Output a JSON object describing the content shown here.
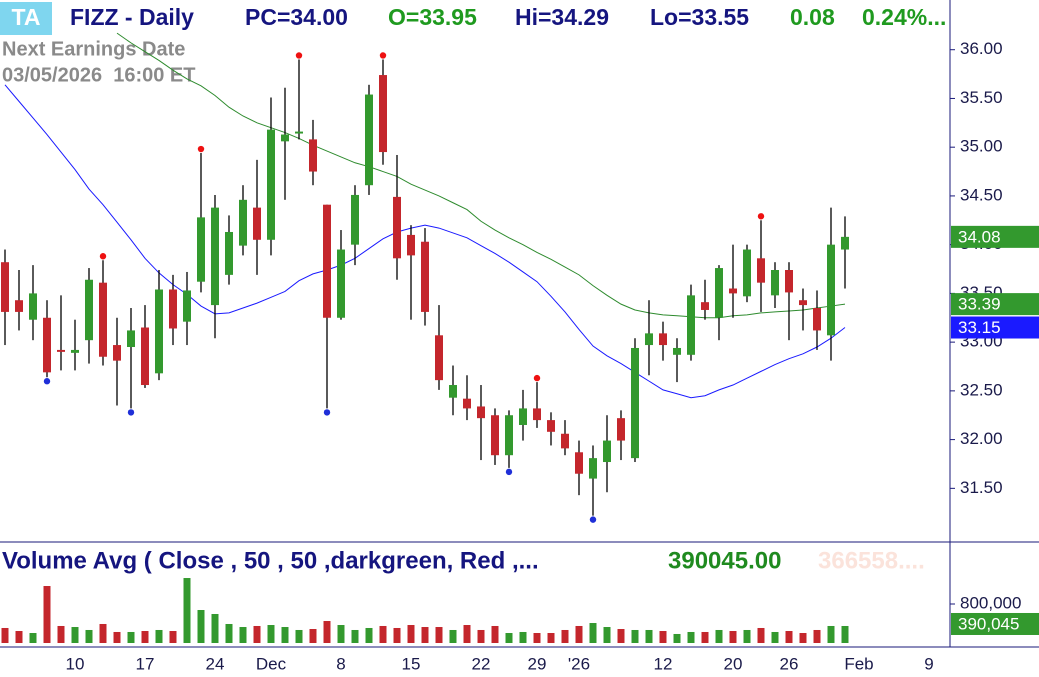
{
  "header": {
    "badge": "TA",
    "symbol": "FIZZ - Daily",
    "prev_close": "PC=34.00",
    "open": "O=33.95",
    "high": "Hi=34.29",
    "low": "Lo=33.55",
    "change": "0.08",
    "change_pct": "0.24%...",
    "earnings_title": "Next Earnings Date",
    "earnings_date": "03/05/2026  16:00 ET"
  },
  "chart_data": {
    "type": "candlestick",
    "categories": [
      null,
      null,
      null,
      null,
      null,
      "10",
      null,
      null,
      null,
      null,
      "17",
      null,
      null,
      null,
      null,
      "24",
      null,
      null,
      null,
      "Dec",
      null,
      null,
      null,
      null,
      "8",
      null,
      null,
      null,
      null,
      "15",
      null,
      null,
      null,
      null,
      "22",
      null,
      null,
      null,
      "29",
      null,
      null,
      "'26",
      null,
      null,
      null,
      null,
      null,
      "12",
      null,
      null,
      null,
      null,
      "20",
      null,
      null,
      null,
      "26",
      null,
      null,
      null,
      null,
      "Feb",
      null,
      null,
      null,
      null,
      "9"
    ],
    "open": [
      33.82,
      33.43,
      33.23,
      33.25,
      32.92,
      32.89,
      33.02,
      33.61,
      32.97,
      32.95,
      33.15,
      32.68,
      33.54,
      33.21,
      33.62,
      33.38,
      33.69,
      33.99,
      34.38,
      34.05,
      35.06,
      35.14,
      35.08,
      34.41,
      33.25,
      34.0,
      34.61,
      35.74,
      34.49,
      34.1,
      34.03,
      33.07,
      32.43,
      32.42,
      32.34,
      32.25,
      31.84,
      32.15,
      32.32,
      32.2,
      32.06,
      31.87,
      31.6,
      31.77,
      32.22,
      31.81,
      32.97,
      33.09,
      32.87,
      32.87,
      33.41,
      33.25,
      33.55,
      33.47,
      33.86,
      33.48,
      33.74,
      33.43,
      33.35,
      33.07,
      33.95,
      null,
      null,
      null,
      null,
      null,
      null
    ],
    "high": [
      33.95,
      33.74,
      33.79,
      33.43,
      33.48,
      33.23,
      33.76,
      33.84,
      33.25,
      33.35,
      33.38,
      33.74,
      33.69,
      33.72,
      34.94,
      34.51,
      34.3,
      34.61,
      34.87,
      35.51,
      35.61,
      35.9,
      35.28,
      34.41,
      34.15,
      34.61,
      35.64,
      35.9,
      34.92,
      34.2,
      34.17,
      33.38,
      32.76,
      32.66,
      32.56,
      32.32,
      32.3,
      32.51,
      32.59,
      32.28,
      32.2,
      31.99,
      31.94,
      32.25,
      32.3,
      33.04,
      33.43,
      33.21,
      33.04,
      33.59,
      33.64,
      33.79,
      34.0,
      34.0,
      34.25,
      33.82,
      33.82,
      33.55,
      33.53,
      34.38,
      34.29,
      null,
      null,
      null,
      null,
      null,
      null
    ],
    "low": [
      32.97,
      33.12,
      33.02,
      32.64,
      32.71,
      32.71,
      32.78,
      32.76,
      32.35,
      32.32,
      32.53,
      32.61,
      32.97,
      32.97,
      33.51,
      33.04,
      33.59,
      33.89,
      33.69,
      33.89,
      34.46,
      35.08,
      34.61,
      32.32,
      33.23,
      33.79,
      34.51,
      34.82,
      33.64,
      33.23,
      33.17,
      32.51,
      32.25,
      32.2,
      31.79,
      31.74,
      31.71,
      31.99,
      32.12,
      31.94,
      31.84,
      31.43,
      31.22,
      31.46,
      31.79,
      31.77,
      32.66,
      32.81,
      32.59,
      32.81,
      33.23,
      33.02,
      33.25,
      33.41,
      33.31,
      33.35,
      33.02,
      33.12,
      32.92,
      32.81,
      33.55,
      null,
      null,
      null,
      null,
      null,
      null
    ],
    "close": [
      33.31,
      33.31,
      33.5,
      32.69,
      32.9,
      32.92,
      33.64,
      32.85,
      32.81,
      33.12,
      32.56,
      33.54,
      33.14,
      33.53,
      34.28,
      34.38,
      34.13,
      34.46,
      34.05,
      35.18,
      35.13,
      35.16,
      34.75,
      33.25,
      33.95,
      34.51,
      35.54,
      34.95,
      33.86,
      33.89,
      33.31,
      32.61,
      32.56,
      32.32,
      32.22,
      31.84,
      32.25,
      32.32,
      32.2,
      32.08,
      31.91,
      31.65,
      31.81,
      31.99,
      31.99,
      32.94,
      33.09,
      32.97,
      32.94,
      33.48,
      33.33,
      33.76,
      33.5,
      33.95,
      33.61,
      33.74,
      33.51,
      33.38,
      33.12,
      34.0,
      34.08,
      null,
      null,
      null,
      null,
      null,
      null
    ],
    "last_label": "34.08",
    "up_color": "#33992e",
    "down_color": "#c4262c",
    "swing_highs": [
      7,
      14,
      21,
      27,
      38,
      54
    ],
    "swing_high_color": "#ee1111",
    "swing_lows": [
      3,
      9,
      23,
      36,
      42
    ],
    "swing_low_color": "#1f2fd8",
    "overlays": [
      {
        "color": "#1a1aff",
        "tag_color": "#1a1aff",
        "last_label": "33.15",
        "values": [
          35.64,
          35.47,
          35.3,
          35.13,
          34.95,
          34.77,
          34.57,
          34.41,
          34.23,
          34.05,
          33.86,
          33.71,
          33.59,
          33.49,
          33.37,
          33.29,
          33.3,
          33.35,
          33.4,
          33.46,
          33.52,
          33.63,
          33.7,
          33.74,
          33.79,
          33.86,
          33.96,
          34.06,
          34.13,
          34.17,
          34.2,
          34.17,
          34.12,
          34.07,
          33.99,
          33.91,
          33.82,
          33.72,
          33.62,
          33.47,
          33.31,
          33.13,
          32.96,
          32.86,
          32.78,
          32.69,
          32.6,
          32.51,
          32.47,
          32.43,
          32.45,
          32.51,
          32.56,
          32.63,
          32.7,
          32.77,
          32.83,
          32.88,
          32.95,
          33.04,
          33.15,
          null,
          null,
          null,
          null,
          null,
          null
        ]
      },
      {
        "color": "#2e8b2e",
        "tag_color": "#33992e",
        "last_label": "33.39",
        "values": [
          null,
          null,
          null,
          null,
          null,
          null,
          null,
          null,
          36.17,
          36.07,
          35.98,
          35.89,
          35.79,
          35.7,
          35.63,
          35.53,
          35.41,
          35.32,
          35.25,
          35.2,
          35.15,
          35.09,
          35.02,
          34.96,
          34.9,
          34.84,
          34.8,
          34.75,
          34.7,
          34.62,
          34.56,
          34.5,
          34.43,
          34.36,
          34.24,
          34.15,
          34.07,
          34.0,
          33.92,
          33.85,
          33.77,
          33.69,
          33.58,
          33.48,
          33.39,
          33.33,
          33.3,
          33.28,
          33.27,
          33.26,
          33.25,
          33.25,
          33.27,
          33.28,
          33.3,
          33.31,
          33.32,
          33.33,
          33.35,
          33.37,
          33.39,
          null,
          null,
          null,
          null,
          null,
          null
        ]
      }
    ],
    "ylim": [
      30.97,
      36.51
    ],
    "yticks": [
      {
        "value": 31.5,
        "label": "31.50"
      },
      {
        "value": 32,
        "label": "32.00"
      },
      {
        "value": 32.5,
        "label": "32.50"
      },
      {
        "value": 33,
        "label": "33.00"
      },
      {
        "value": 33.5,
        "label": "33.50"
      },
      {
        "value": 34,
        "label": "34.00"
      },
      {
        "value": 34.5,
        "label": "34.50"
      },
      {
        "value": 35,
        "label": "35.00"
      },
      {
        "value": 35.5,
        "label": "35.50"
      },
      {
        "value": 36,
        "label": "36.00"
      }
    ],
    "volume": {
      "title": "Volume Avg ( Close , 50 , 50 ,darkgreen, Red ,...",
      "value_text": "390045.00",
      "faded_text": "366558....",
      "values": [
        308000,
        246000,
        205000,
        1169000,
        349000,
        328000,
        267000,
        390000,
        226000,
        226000,
        246000,
        267000,
        246000,
        1333000,
        677000,
        595000,
        390000,
        328000,
        349000,
        369000,
        328000,
        267000,
        287000,
        451000,
        369000,
        267000,
        308000,
        349000,
        308000,
        369000,
        328000,
        328000,
        267000,
        369000,
        267000,
        349000,
        205000,
        226000,
        205000,
        205000,
        267000,
        349000,
        410000,
        328000,
        287000,
        267000,
        267000,
        246000,
        185000,
        226000,
        226000,
        267000,
        246000,
        267000,
        308000,
        226000,
        246000,
        205000,
        267000,
        349000,
        349000,
        null,
        null,
        null,
        null,
        null,
        null
      ],
      "ylim": [
        0,
        1395000
      ],
      "yticks": [
        {
          "value": 800000,
          "label": "800,000"
        }
      ],
      "avg": {
        "value": 390045,
        "label": "390,045"
      }
    }
  }
}
